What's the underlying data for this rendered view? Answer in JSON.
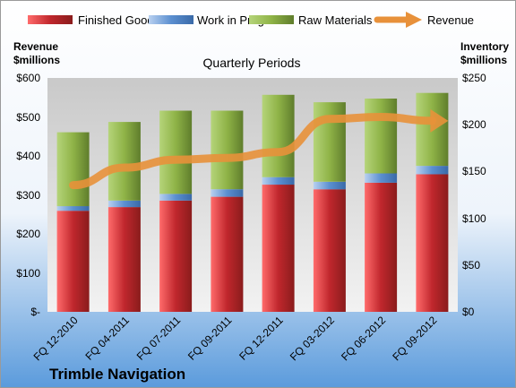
{
  "chart_data": {
    "type": "bar",
    "stacked": true,
    "company": "Trimble Navigation",
    "subtitle": "Quarterly Periods",
    "left_axis_title": [
      "Revenue",
      "$millions"
    ],
    "right_axis_title": [
      "Inventory",
      "$millions"
    ],
    "left_ticks": [
      "$-",
      "$100",
      "$200",
      "$300",
      "$400",
      "$500",
      "$600"
    ],
    "right_ticks": [
      "$0",
      "$50",
      "$100",
      "$150",
      "$200",
      "$250"
    ],
    "left_ylim": [
      0,
      600
    ],
    "right_ylim": [
      0,
      250
    ],
    "categories": [
      "FQ 12-2010",
      "FQ 04-2011",
      "FQ 07-2011",
      "FQ 09-2011",
      "FQ 12-2011",
      "FQ 03-2012",
      "FQ 06-2012",
      "FQ 09-2012"
    ],
    "series": [
      {
        "name": "Finished Goods",
        "axis": "right",
        "color": "#c0272d",
        "values": [
          108,
          112,
          119,
          123,
          136,
          131,
          138,
          147
        ]
      },
      {
        "name": "Work in Progress",
        "axis": "right",
        "color": "#5b8fd0",
        "values": [
          5,
          7,
          7,
          8,
          8,
          8,
          10,
          9
        ]
      },
      {
        "name": "Raw Materials",
        "axis": "right",
        "color": "#8fb347",
        "values": [
          79,
          84,
          89,
          84,
          88,
          85,
          80,
          78
        ]
      },
      {
        "name": "Revenue",
        "axis": "left",
        "type": "line",
        "color": "#e8913a",
        "values": [
          325,
          370,
          390,
          395,
          410,
          495,
          500,
          490
        ]
      }
    ],
    "legend_position": "top",
    "grid": false
  }
}
